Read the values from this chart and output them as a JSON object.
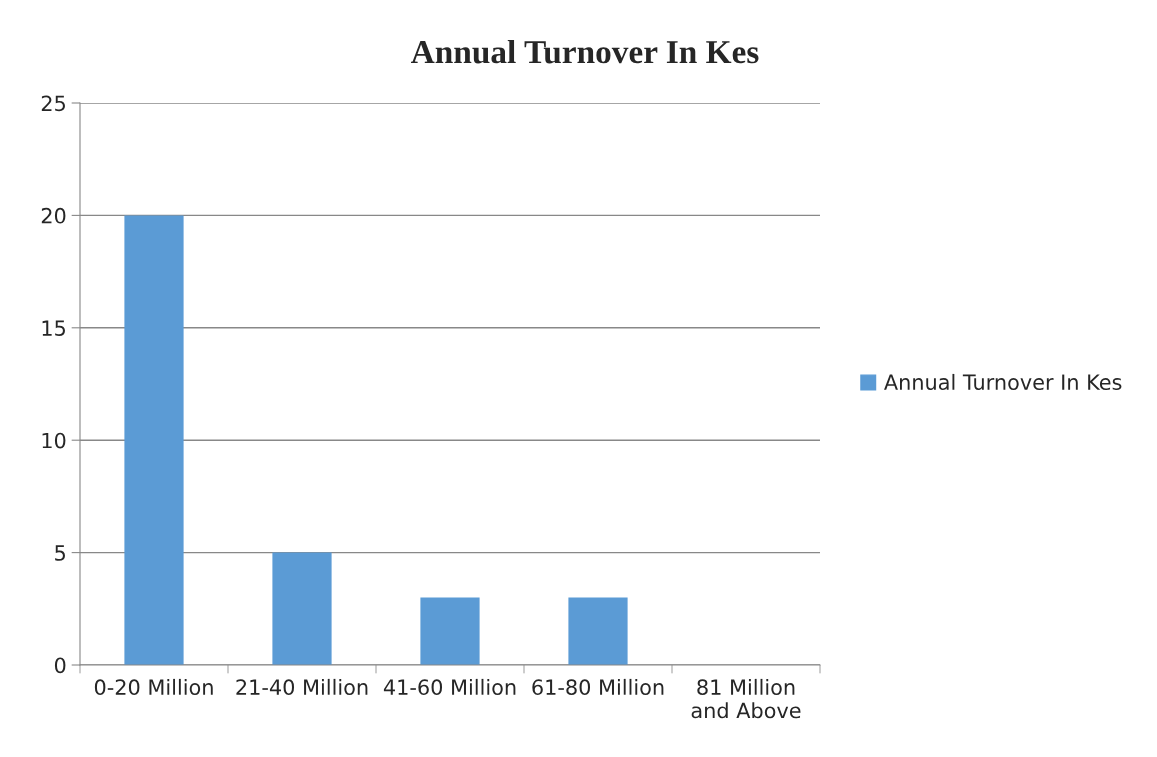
{
  "chart_data": {
    "type": "bar",
    "title": "Annual Turnover In Kes",
    "categories": [
      "0-20 Million",
      "21-40 Million",
      "41-60 Million",
      "61-80 Million",
      "81 Million\nand Above"
    ],
    "series": [
      {
        "name": "Annual Turnover In Kes",
        "color": "#5b9bd5",
        "values": [
          20,
          5,
          3,
          3,
          0
        ]
      }
    ],
    "ylim": [
      0,
      25
    ],
    "yticks": [
      0,
      5,
      10,
      15,
      20,
      25
    ],
    "grid": "y",
    "legend": "right"
  }
}
